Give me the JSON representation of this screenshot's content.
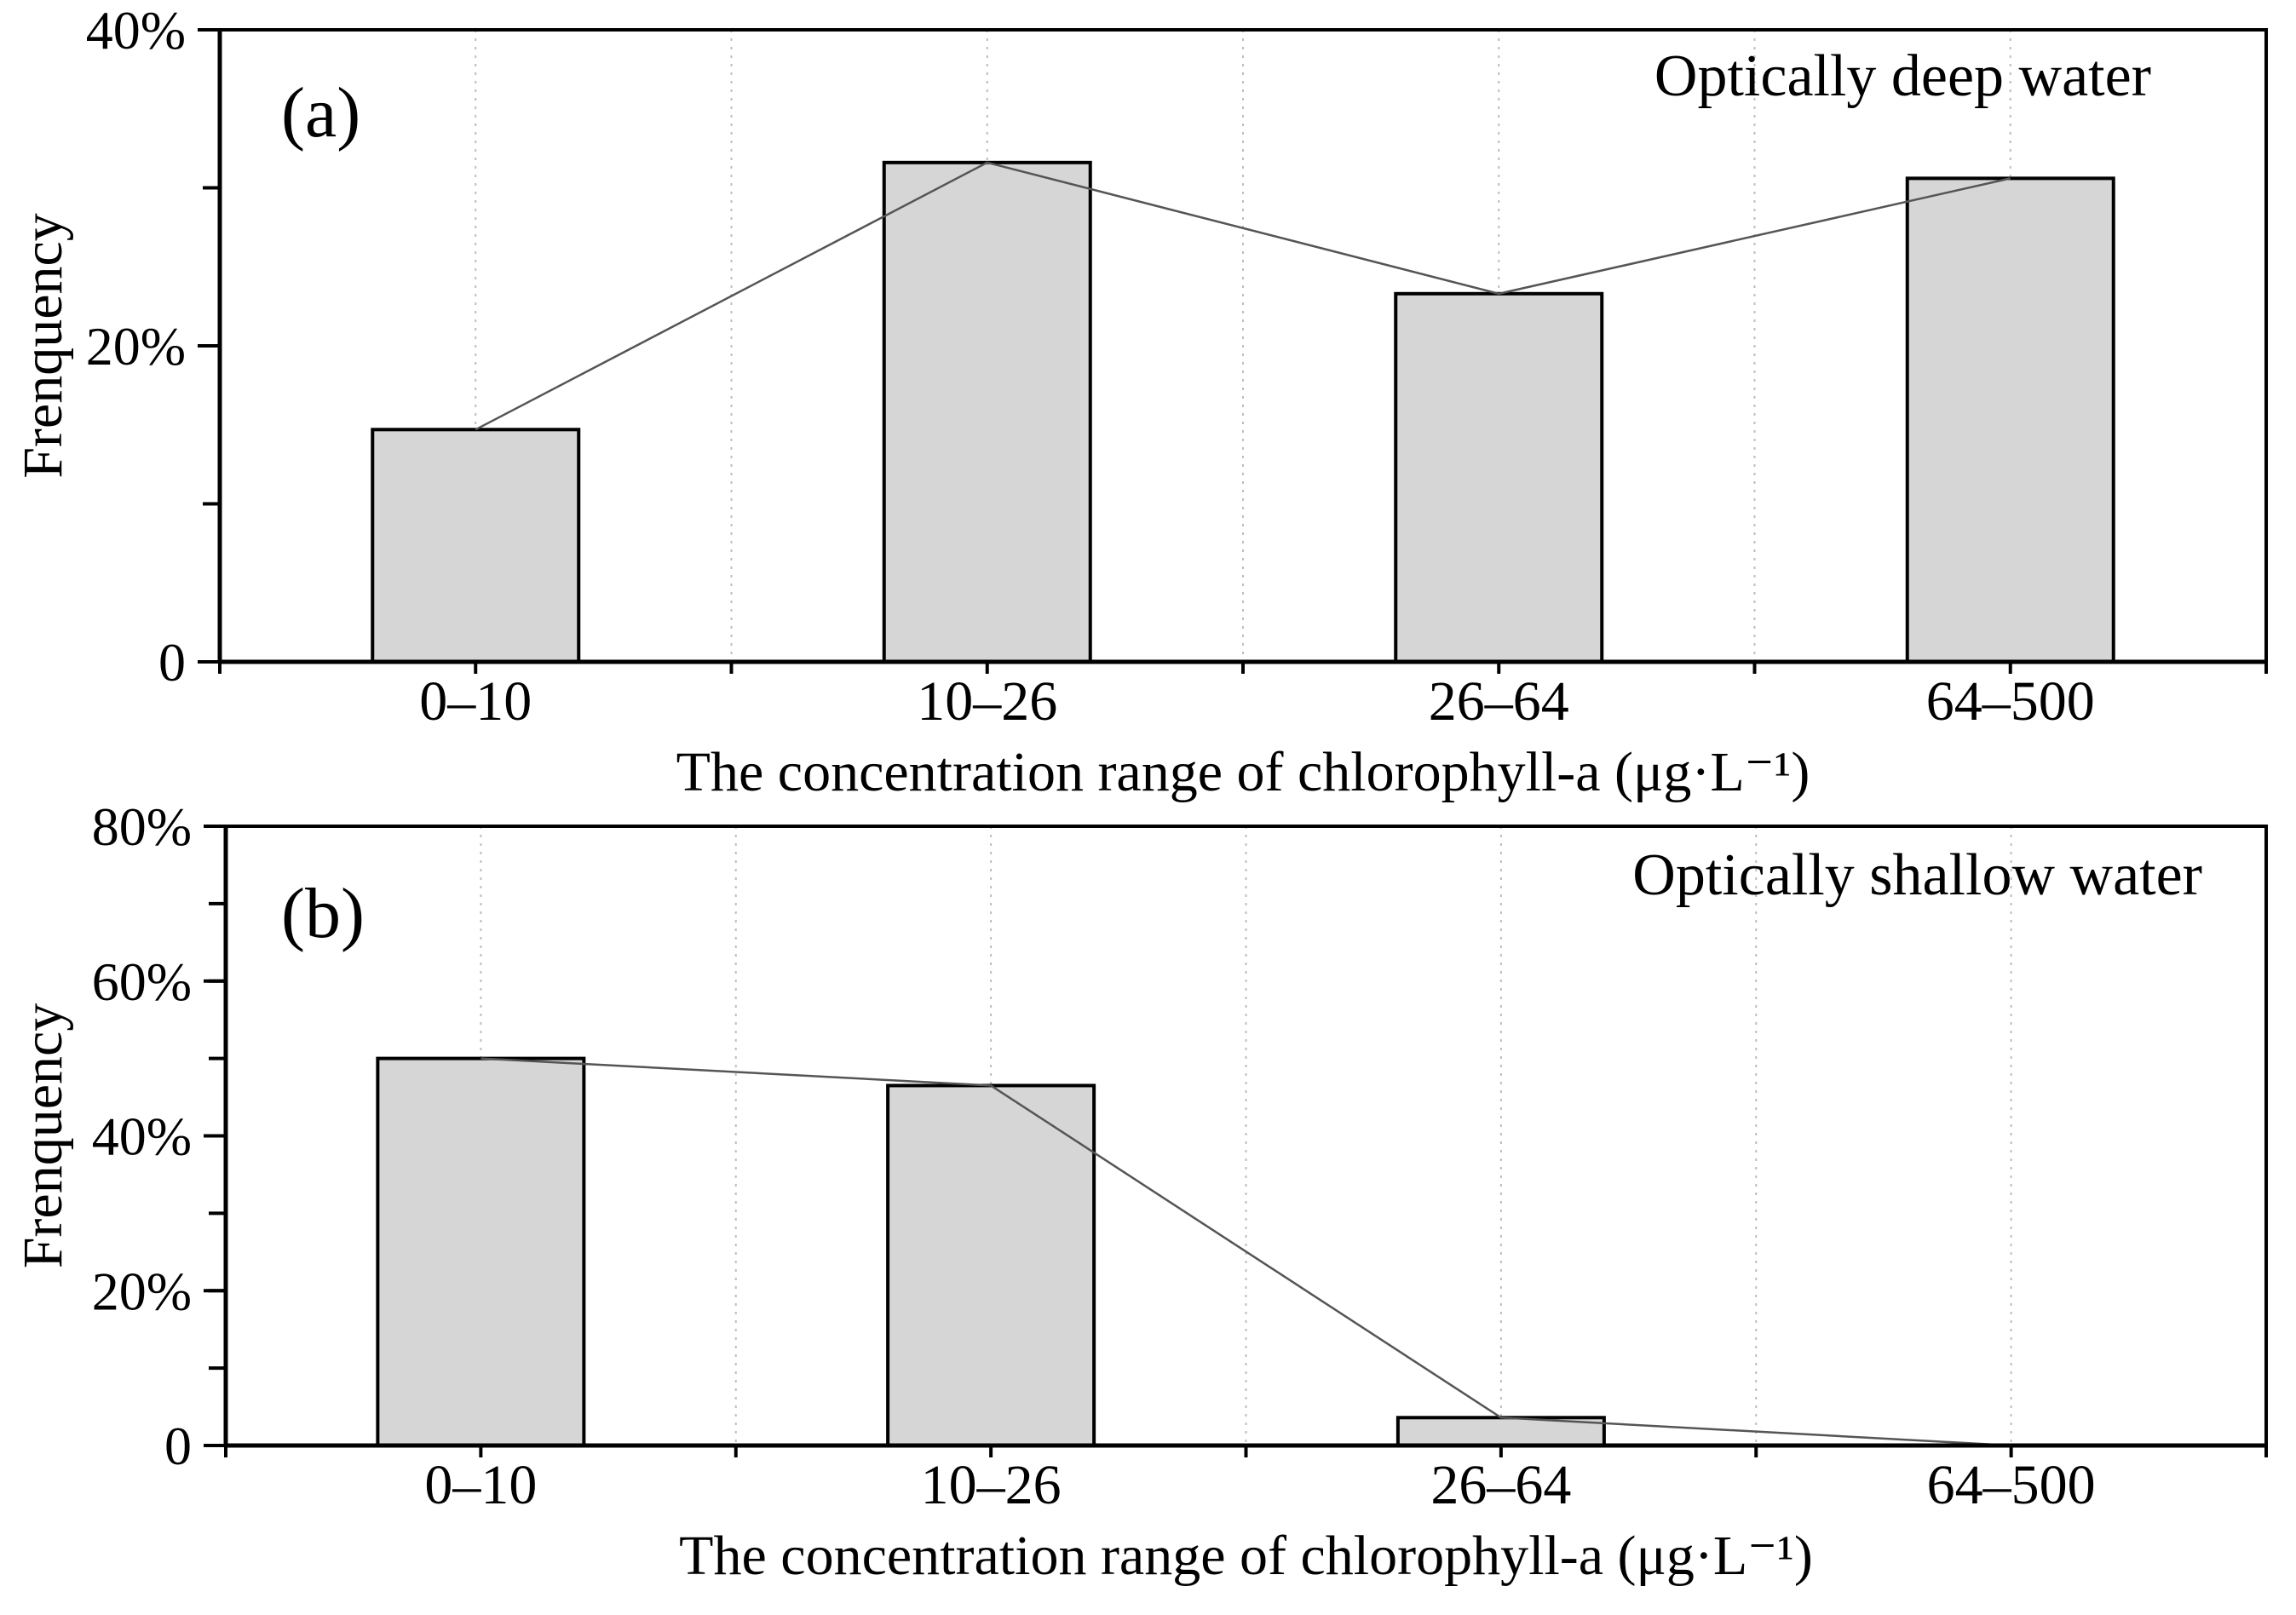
{
  "chart_data": [
    {
      "type": "bar",
      "panel": "(a)",
      "annotation": "Optically deep water",
      "categories": [
        "0–10",
        "10–26",
        "26–64",
        "64–500"
      ],
      "values": [
        14.7,
        31.6,
        23.3,
        30.6
      ],
      "unit": "%",
      "trend_line": true,
      "xlabel": "The concentration range of chlorophyll-a (μg·L⁻¹)",
      "ylabel": "Frenquency",
      "ylim": [
        0,
        40
      ],
      "yticks": [
        {
          "value": 0,
          "label": "0"
        },
        {
          "value": 20,
          "label": "20%"
        },
        {
          "value": 40,
          "label": "40%"
        }
      ],
      "minor_ytick_step": 10,
      "grid": true
    },
    {
      "type": "bar",
      "panel": "(b)",
      "annotation": "Optically shallow water",
      "categories": [
        "0–10",
        "10–26",
        "26–64",
        "64–500"
      ],
      "values": [
        50.0,
        46.5,
        3.6,
        0.0
      ],
      "unit": "%",
      "trend_line": true,
      "xlabel": "The concentration range of chlorophyll-a (μg·L⁻¹)",
      "ylabel": "Frenquency",
      "ylim": [
        0,
        80
      ],
      "yticks": [
        {
          "value": 0,
          "label": "0"
        },
        {
          "value": 20,
          "label": "20%"
        },
        {
          "value": 40,
          "label": "40%"
        },
        {
          "value": 60,
          "label": "60%"
        },
        {
          "value": 80,
          "label": "80%"
        }
      ],
      "minor_ytick_step": 10,
      "grid": true
    }
  ]
}
